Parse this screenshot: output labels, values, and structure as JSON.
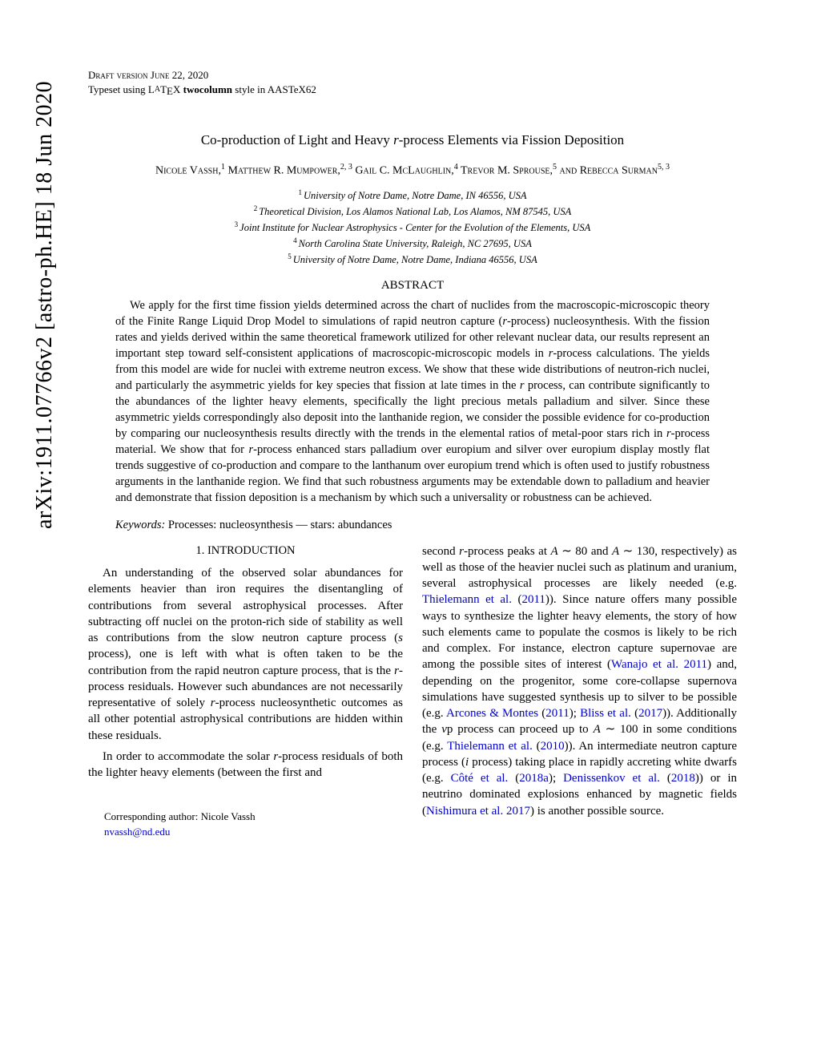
{
  "arxiv": {
    "id": "arXiv:1911.07766v2  [astro-ph.HE]  18 Jun 2020"
  },
  "header": {
    "draft_line": "Draft version June 22, 2020",
    "typeset_prefix": "Typeset using L",
    "typeset_a": "A",
    "typeset_tex": "T",
    "typeset_e": "E",
    "typeset_x": "X ",
    "typeset_style": "twocolumn",
    "typeset_suffix": " style in AASTeX62"
  },
  "title": {
    "prefix": "Co-production of Light and Heavy ",
    "italic": "r",
    "suffix": "-process Elements via Fission Deposition"
  },
  "authors": {
    "a1": "Nicole Vassh,",
    "s1": "1",
    "a2": " Matthew R. Mumpower,",
    "s2": "2, 3",
    "a3": " Gail C. McLaughlin,",
    "s3": "4",
    "a4": " Trevor M. Sprouse,",
    "s4": "5",
    "a5": " and Rebecca Surman",
    "s5": "5, 3"
  },
  "affiliations": [
    {
      "num": "1",
      "text": "University of Notre Dame, Notre Dame, IN 46556, USA"
    },
    {
      "num": "2",
      "text": "Theoretical Division, Los Alamos National Lab, Los Alamos, NM 87545, USA"
    },
    {
      "num": "3",
      "text": "Joint Institute for Nuclear Astrophysics - Center for the Evolution of the Elements, USA"
    },
    {
      "num": "4",
      "text": "North Carolina State University, Raleigh, NC 27695, USA"
    },
    {
      "num": "5",
      "text": "University of Notre Dame, Notre Dame, Indiana 46556, USA"
    }
  ],
  "abstract": {
    "heading": "ABSTRACT",
    "body_parts": [
      "We apply for the first time fission yields determined across the chart of nuclides from the macroscopic-microscopic theory of the Finite Range Liquid Drop Model to simulations of rapid neutron capture (",
      "r",
      "-process) nucleosynthesis. With the fission rates and yields derived within the same theoretical framework utilized for other relevant nuclear data, our results represent an important step toward self-consistent applications of macroscopic-microscopic models in ",
      "r",
      "-process calculations. The yields from this model are wide for nuclei with extreme neutron excess. We show that these wide distributions of neutron-rich nuclei, and particularly the asymmetric yields for key species that fission at late times in the ",
      "r",
      " process, can contribute significantly to the abundances of the lighter heavy elements, specifically the light precious metals palladium and silver. Since these asymmetric yields correspondingly also deposit into the lanthanide region, we consider the possible evidence for co-production by comparing our nucleosynthesis results directly with the trends in the elemental ratios of metal-poor stars rich in ",
      "r",
      "-process material. We show that for ",
      "r",
      "-process enhanced stars palladium over europium and silver over europium display mostly flat trends suggestive of co-production and compare to the lanthanum over europium trend which is often used to justify robustness arguments in the lanthanide region. We find that such robustness arguments may be extendable down to palladium and heavier and demonstrate that fission deposition is a mechanism by which such a universality or robustness can be achieved."
    ]
  },
  "keywords": {
    "label": "Keywords:",
    "text": " Processes: nucleosynthesis — stars: abundances"
  },
  "section1": {
    "number": "1.",
    "title": " INTRODUCTION"
  },
  "col_left": {
    "p1": "An understanding of the observed solar abundances for elements heavier than iron requires the disentangling of contributions from several astrophysical processes. After subtracting off nuclei on the proton-rich side of stability as well as contributions from the slow neutron capture process (",
    "p1_s": "s",
    "p1_mid": " process), one is left with what is often taken to be the contribution from the rapid neutron capture process, that is the ",
    "p1_r": "r",
    "p1_end": "-process residuals. However such abundances are not necessarily representative of solely ",
    "p1_r2": "r",
    "p1_end2": "-process nucleosynthetic outcomes as all other potential astrophysical contributions are hidden within these residuals.",
    "p2_start": "In order to accommodate the solar ",
    "p2_r": "r",
    "p2_end": "-process residuals of both the lighter heavy elements (between the first and"
  },
  "col_right": {
    "part1": "second ",
    "r1": "r",
    "part2": "-process peaks at ",
    "A1": "A",
    "sim1": " ∼ 80 and ",
    "A2": "A",
    "sim2": " ∼ 130, respectively) as well as those of the heavier nuclei such as platinum and uranium, several astrophysical processes are likely needed (e.g. ",
    "c1": "Thielemann et al.",
    "c1p": " (",
    "c1y": "2011",
    "c1e": ")). Since nature offers many possible ways to synthesize the lighter heavy elements, the story of how such elements came to populate the cosmos is likely to be rich and complex. For instance, electron capture supernovae are among the possible sites of interest (",
    "c2": "Wanajo et al. 2011",
    "part3": ") and, depending on the progenitor, some core-collapse supernova simulations have suggested synthesis up to silver to be possible (e.g. ",
    "c3": "Arcones & Montes",
    "c3p": " (",
    "c3y": "2011",
    "c3e": "); ",
    "c4": "Bliss et al.",
    "c4p": " (",
    "c4y": "2017",
    "c4e": ")). Additionally the ",
    "nu": "ν",
    "part4": "p process can proceed up to ",
    "A3": "A",
    "sim3": " ∼ 100 in some conditions (e.g. ",
    "c5": "Thielemann et al.",
    "c5p": " (",
    "c5y": "2010",
    "c5e": ")). An intermediate neutron capture process (",
    "i1": "i",
    "part5": " process) taking place in rapidly accreting white dwarfs (e.g. ",
    "c6": "Côté et al.",
    "c6p": " (",
    "c6y": "2018a",
    "c6e": "); ",
    "c7": "Denissenkov et al.",
    "c7p": " (",
    "c7y": "2018",
    "c7e": ")) or in neutrino dominated explosions enhanced by magnetic fields (",
    "c8": "Nishimura et al. 2017",
    "part6": ") is another possible source."
  },
  "corresponding": {
    "line1": "Corresponding author: Nicole Vassh",
    "email": "nvassh@nd.edu"
  }
}
